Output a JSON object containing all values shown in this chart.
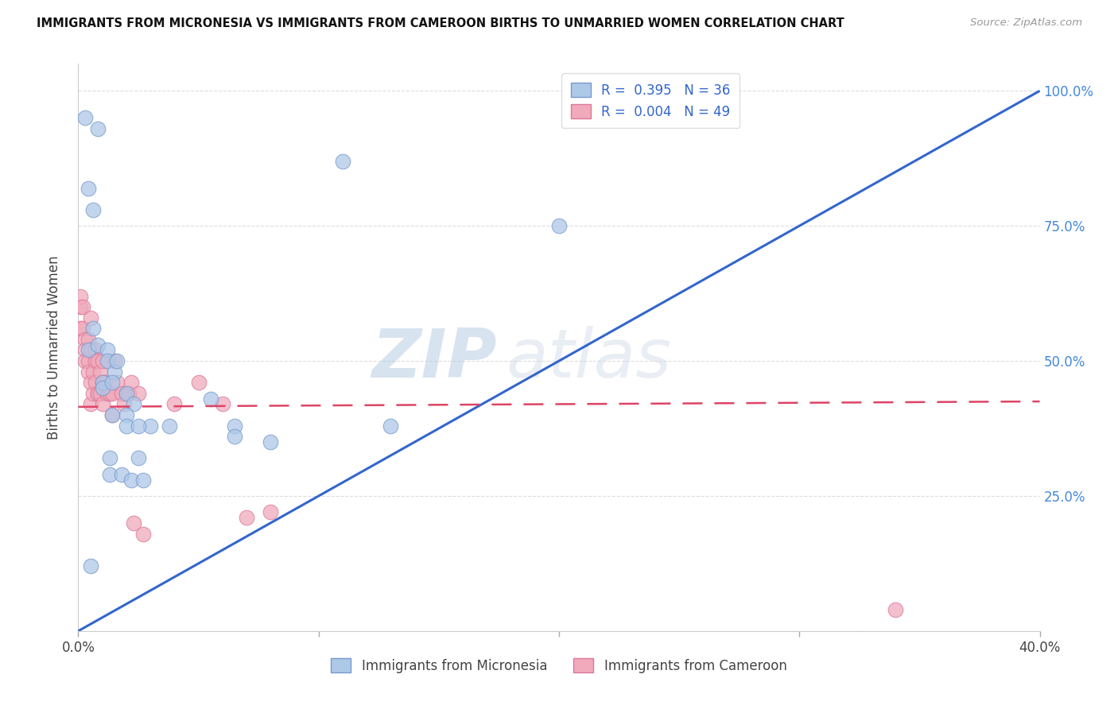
{
  "title": "IMMIGRANTS FROM MICRONESIA VS IMMIGRANTS FROM CAMEROON BIRTHS TO UNMARRIED WOMEN CORRELATION CHART",
  "source": "Source: ZipAtlas.com",
  "ylabel": "Births to Unmarried Women",
  "xlim": [
    0.0,
    0.4
  ],
  "ylim": [
    0.0,
    1.05
  ],
  "watermark_zip": "ZIP",
  "watermark_atlas": "atlas",
  "legend_r1": "R =  0.395",
  "legend_n1": "N = 36",
  "legend_r2": "R =  0.004",
  "legend_n2": "N = 49",
  "micronesia_color": "#aec8e8",
  "cameroon_color": "#f0aabb",
  "micronesia_edge": "#7799cc",
  "cameroon_edge": "#dd7799",
  "trend_blue": "#3366cc",
  "trend_pink": "#dd4466",
  "blue_trend_x": [
    0.0,
    0.4
  ],
  "blue_trend_y": [
    0.0,
    1.0
  ],
  "pink_trend_x": [
    0.0,
    0.4
  ],
  "pink_trend_y": [
    0.415,
    0.425
  ],
  "micronesia_x": [
    0.003,
    0.008,
    0.004,
    0.006,
    0.006,
    0.004,
    0.008,
    0.012,
    0.012,
    0.015,
    0.01,
    0.01,
    0.014,
    0.016,
    0.02,
    0.023,
    0.055,
    0.038,
    0.03,
    0.065,
    0.065,
    0.08,
    0.11,
    0.13,
    0.014,
    0.02,
    0.02,
    0.025,
    0.025,
    0.013,
    0.013,
    0.018,
    0.022,
    0.027,
    0.005,
    0.2
  ],
  "micronesia_y": [
    0.95,
    0.93,
    0.82,
    0.78,
    0.56,
    0.52,
    0.53,
    0.52,
    0.5,
    0.48,
    0.46,
    0.45,
    0.46,
    0.5,
    0.44,
    0.42,
    0.43,
    0.38,
    0.38,
    0.38,
    0.36,
    0.35,
    0.87,
    0.38,
    0.4,
    0.4,
    0.38,
    0.38,
    0.32,
    0.32,
    0.29,
    0.29,
    0.28,
    0.28,
    0.12,
    0.75
  ],
  "cameroon_x": [
    0.001,
    0.001,
    0.001,
    0.002,
    0.002,
    0.003,
    0.003,
    0.003,
    0.004,
    0.004,
    0.004,
    0.005,
    0.005,
    0.005,
    0.005,
    0.006,
    0.006,
    0.007,
    0.007,
    0.007,
    0.008,
    0.008,
    0.008,
    0.009,
    0.009,
    0.01,
    0.01,
    0.01,
    0.011,
    0.012,
    0.013,
    0.014,
    0.014,
    0.015,
    0.016,
    0.018,
    0.019,
    0.02,
    0.021,
    0.022,
    0.023,
    0.025,
    0.027,
    0.04,
    0.05,
    0.06,
    0.07,
    0.08,
    0.34
  ],
  "cameroon_y": [
    0.6,
    0.62,
    0.56,
    0.6,
    0.56,
    0.54,
    0.52,
    0.5,
    0.54,
    0.5,
    0.48,
    0.58,
    0.52,
    0.46,
    0.42,
    0.48,
    0.44,
    0.52,
    0.5,
    0.46,
    0.44,
    0.5,
    0.44,
    0.48,
    0.44,
    0.5,
    0.46,
    0.42,
    0.46,
    0.44,
    0.44,
    0.44,
    0.4,
    0.5,
    0.46,
    0.44,
    0.42,
    0.44,
    0.44,
    0.46,
    0.2,
    0.44,
    0.18,
    0.42,
    0.46,
    0.42,
    0.21,
    0.22,
    0.04
  ]
}
